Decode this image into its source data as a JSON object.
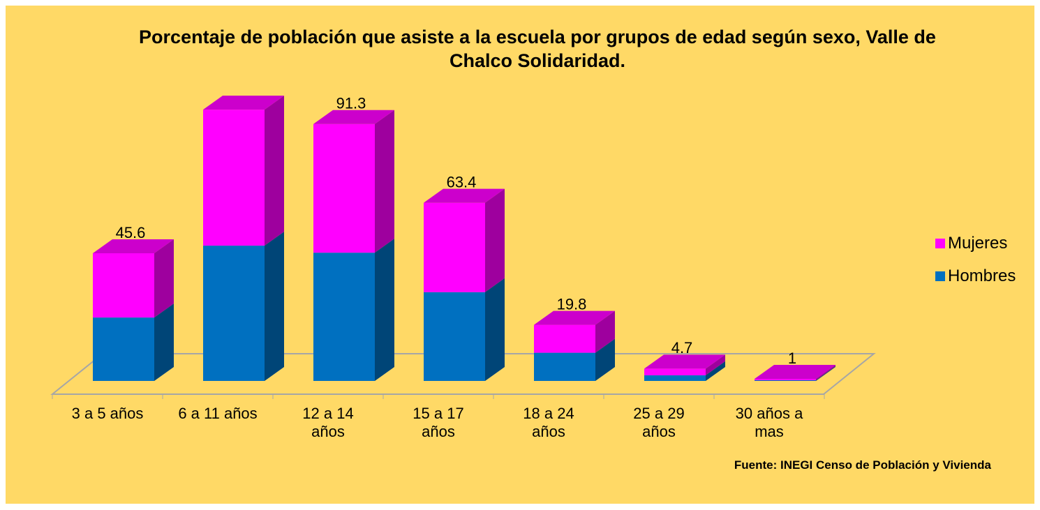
{
  "chart_data": {
    "type": "bar3d_stacked",
    "title": "Porcentaje de población que asiste a la escuela por grupos de edad según sexo, Valle de Chalco Solidaridad.",
    "categories": [
      "3 a 5 años",
      "6 a 11 años",
      "12 a 14 años",
      "15 a 17 años",
      "18 a 24 años",
      "25 a 29 años",
      "30 años a mas"
    ],
    "series": [
      {
        "name": "Hombres",
        "color": "#0070c0",
        "values": [
          45,
          96,
          91,
          63,
          20,
          4,
          0.5
        ]
      },
      {
        "name": "Mujeres",
        "color": "#ff00ff",
        "values": [
          45.6,
          96.5,
          91.3,
          63.4,
          19.8,
          4.7,
          1
        ],
        "value_labels": [
          "45.6",
          null,
          "91.3",
          "63.4",
          "19.8",
          "4.7",
          "1"
        ]
      }
    ],
    "ylim": [
      0,
      200
    ],
    "legend": "right",
    "source": "Fuente: INEGI Censo de Población y Vivienda"
  }
}
